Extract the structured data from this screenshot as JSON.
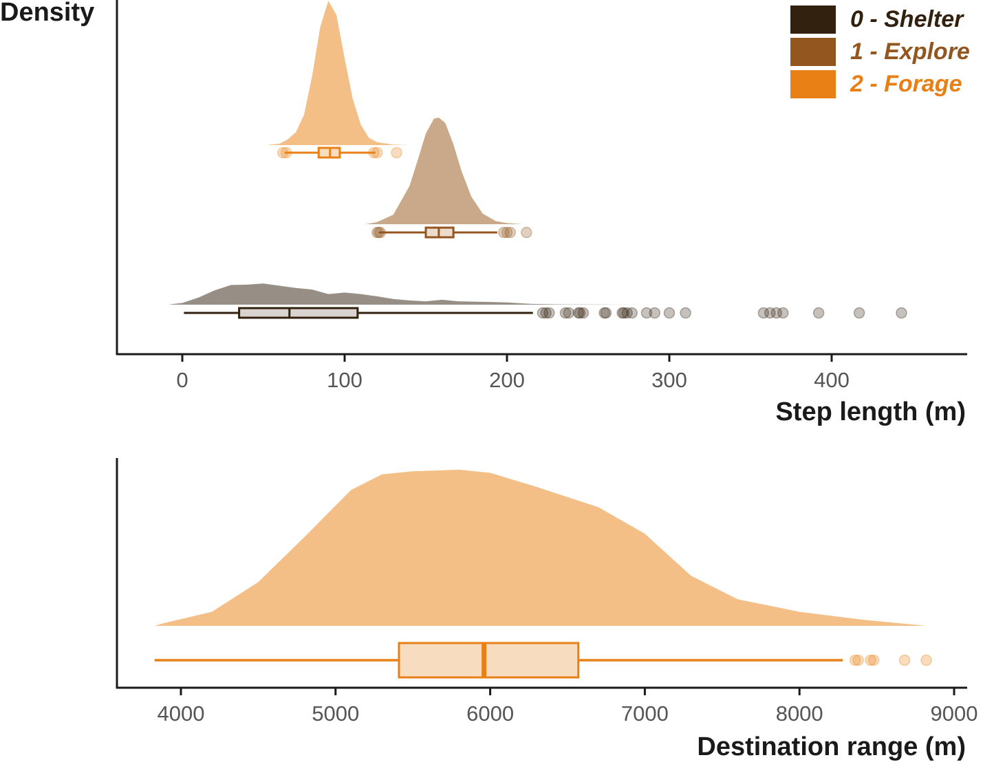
{
  "chart_data": [
    {
      "type": "raincloud",
      "ylabel": "Density",
      "xlabel": "Step length (m)",
      "xlim": [
        -40,
        480
      ],
      "ticks": [
        0,
        100,
        200,
        300,
        400
      ],
      "tick_labels": [
        "0",
        "100",
        "200",
        "300",
        "400"
      ],
      "legend": {
        "placement": "top-right",
        "entries": [
          {
            "label": "0 - Shelter",
            "color": "#33210f"
          },
          {
            "label": "1 - Explore",
            "color": "#93561f"
          },
          {
            "label": "2 - Forage",
            "color": "#e88016"
          }
        ]
      },
      "series": [
        {
          "name": "0 - Shelter",
          "color": "#33210f",
          "density_color": "#978e86",
          "box_fill": "#d9d4cf",
          "box": {
            "whisker_low": 1,
            "q1": 35,
            "median": 66,
            "q3": 108,
            "whisker_high": 216
          },
          "outliers": [
            222,
            224,
            226,
            236,
            238,
            244,
            245,
            247,
            260,
            261,
            271,
            272,
            274,
            277,
            286,
            291,
            300,
            310,
            358,
            362,
            366,
            370,
            392,
            417,
            443
          ],
          "density": [
            [
              -8,
              0.005
            ],
            [
              0,
              0.045
            ],
            [
              10,
              0.19
            ],
            [
              20,
              0.38
            ],
            [
              30,
              0.52
            ],
            [
              40,
              0.53
            ],
            [
              50,
              0.56
            ],
            [
              60,
              0.5
            ],
            [
              70,
              0.44
            ],
            [
              80,
              0.4
            ],
            [
              90,
              0.28
            ],
            [
              100,
              0.32
            ],
            [
              110,
              0.28
            ],
            [
              120,
              0.22
            ],
            [
              130,
              0.15
            ],
            [
              140,
              0.11
            ],
            [
              150,
              0.09
            ],
            [
              160,
              0.13
            ],
            [
              170,
              0.09
            ],
            [
              180,
              0.08
            ],
            [
              190,
              0.07
            ],
            [
              200,
              0.06
            ],
            [
              215,
              0.02
            ],
            [
              235,
              0.008
            ],
            [
              260,
              0.004
            ],
            [
              310,
              0.0
            ]
          ]
        },
        {
          "name": "1 - Explore",
          "color": "#93561f",
          "density_color": "#c9a98a",
          "box_fill": "#ebdccd",
          "box": {
            "whisker_low": 121,
            "q1": 150,
            "median": 158,
            "q3": 167,
            "whisker_high": 194
          },
          "outliers": [
            120,
            121,
            122,
            198,
            200,
            202,
            212
          ],
          "density": [
            [
              113,
              0.0
            ],
            [
              120,
              0.02
            ],
            [
              130,
              0.09
            ],
            [
              140,
              0.36
            ],
            [
              145,
              0.6
            ],
            [
              150,
              0.85
            ],
            [
              155,
              0.99
            ],
            [
              158,
              1.0
            ],
            [
              162,
              0.95
            ],
            [
              167,
              0.75
            ],
            [
              172,
              0.5
            ],
            [
              178,
              0.26
            ],
            [
              185,
              0.1
            ],
            [
              193,
              0.03
            ],
            [
              200,
              0.01
            ],
            [
              210,
              0.0
            ]
          ]
        },
        {
          "name": "2 - Forage",
          "color": "#e88016",
          "density_color": "#f3bf87",
          "box_fill": "#f8dcc0",
          "box": {
            "whisker_low": 63,
            "q1": 84,
            "median": 91,
            "q3": 97,
            "whisker_high": 119
          },
          "outliers": [
            62,
            64,
            118,
            120,
            132
          ],
          "density": [
            [
              52,
              0.0
            ],
            [
              60,
              0.01
            ],
            [
              65,
              0.04
            ],
            [
              70,
              0.09
            ],
            [
              75,
              0.21
            ],
            [
              80,
              0.48
            ],
            [
              85,
              0.82
            ],
            [
              90,
              1.0
            ],
            [
              95,
              0.9
            ],
            [
              100,
              0.6
            ],
            [
              105,
              0.32
            ],
            [
              110,
              0.14
            ],
            [
              115,
              0.05
            ],
            [
              120,
              0.02
            ],
            [
              130,
              0.004
            ],
            [
              140,
              0.0
            ]
          ]
        }
      ]
    },
    {
      "type": "raincloud",
      "xlabel": "Destination range (m)",
      "xlim": [
        3600,
        9100
      ],
      "ticks": [
        4000,
        5000,
        6000,
        7000,
        8000,
        9000
      ],
      "tick_labels": [
        "4000",
        "5000",
        "6000",
        "7000",
        "8000",
        "9000"
      ],
      "series": [
        {
          "name": "2 - Forage",
          "color": "#e88016",
          "density_color": "#f3bf87",
          "box_fill": "#f8dcc0",
          "box": {
            "whisker_low": 3830,
            "q1": 5410,
            "median": 5960,
            "q3": 6570,
            "whisker_high": 8280
          },
          "outliers": [
            8360,
            8380,
            8460,
            8480,
            8680,
            8820
          ],
          "density": [
            [
              3830,
              0.0
            ],
            [
              3900,
              0.02
            ],
            [
              4200,
              0.09
            ],
            [
              4500,
              0.28
            ],
            [
              4800,
              0.57
            ],
            [
              5100,
              0.87
            ],
            [
              5300,
              0.97
            ],
            [
              5500,
              0.99
            ],
            [
              5800,
              1.0
            ],
            [
              6000,
              0.98
            ],
            [
              6300,
              0.89
            ],
            [
              6700,
              0.76
            ],
            [
              7000,
              0.59
            ],
            [
              7300,
              0.32
            ],
            [
              7600,
              0.17
            ],
            [
              8000,
              0.09
            ],
            [
              8400,
              0.04
            ],
            [
              8820,
              0.0
            ]
          ]
        }
      ]
    }
  ]
}
